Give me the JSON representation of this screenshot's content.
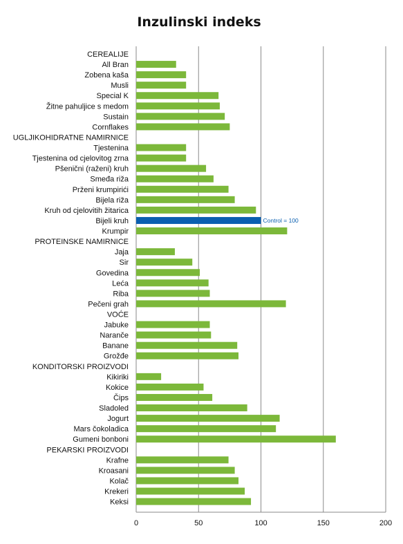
{
  "chart_data": {
    "type": "bar",
    "orientation": "horizontal",
    "title": "Inzulinski indeks",
    "xlabel": "",
    "ylabel": "",
    "xlim": [
      0,
      200
    ],
    "xticks": [
      "0",
      "50",
      "100",
      "150",
      "200"
    ],
    "grid": true,
    "legend": "none",
    "categories": [
      "CEREALIJE",
      "All Bran",
      "Zobena kaša",
      "Musli",
      "Special K",
      "Žitne pahuljice s medom",
      "Sustain",
      "Cornflakes",
      "UGLJIKOHIDRATNE NAMIRNICE",
      "Tjestenina",
      "Tjestenina od cjelovitog zrna",
      "Pšenični (raženi) kruh",
      "Smeđa riža",
      "Prženi krumpirići",
      "Bijela riža",
      "Kruh od cjelovitih žitarica",
      "Bijeli kruh",
      "Krumpir",
      "PROTEINSKE NAMIRNICE",
      "Jaja",
      "Sir",
      "Govedina",
      "Leća",
      "Riba",
      "Pečeni grah",
      "VOĆE",
      "Jabuke",
      "Naranče",
      "Banane",
      "Grožđe",
      "KONDITORSKI PROIZVODI",
      "Kikiriki",
      "Kokice",
      "Čips",
      "Sladoled",
      "Jogurt",
      "Mars čokoladica",
      "Gumeni bonboni",
      "PEKARSKI PROIZVODI",
      "Krafne",
      "Kroasani",
      "Kolač",
      "Krekeri",
      "Keksi"
    ],
    "values": [
      null,
      32,
      40,
      40,
      66,
      67,
      71,
      75,
      null,
      40,
      40,
      56,
      62,
      74,
      79,
      96,
      100,
      121,
      null,
      31,
      45,
      51,
      58,
      59,
      120,
      null,
      59,
      60,
      81,
      82,
      null,
      20,
      54,
      61,
      89,
      115,
      112,
      160,
      null,
      74,
      79,
      82,
      87,
      92
    ],
    "highlight": {
      "category": "Bijeli kruh",
      "color": "#0a5fb0",
      "annotation": "Control = 100"
    },
    "colors": {
      "bar": "#7cb83a",
      "highlight": "#0a5fb0",
      "grid": "#8a8a8a",
      "annotation": "#0a5fb0"
    }
  }
}
